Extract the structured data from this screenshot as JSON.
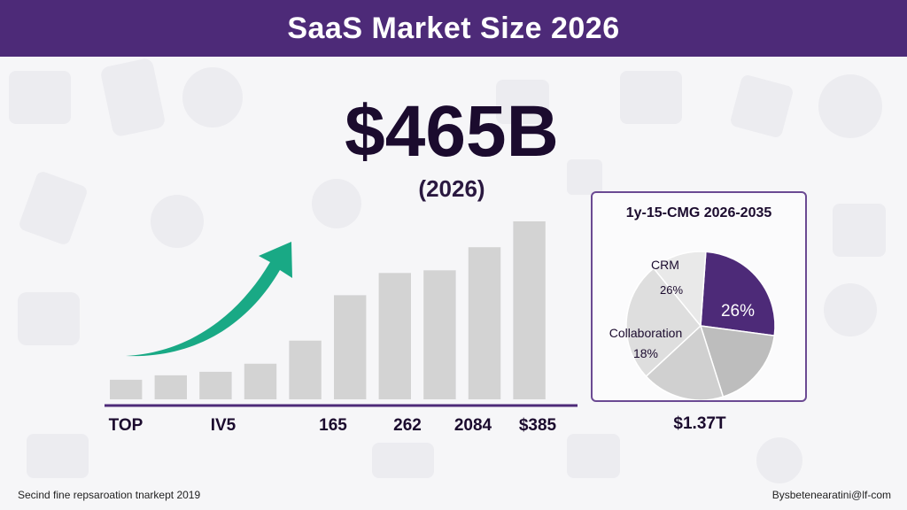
{
  "header": {
    "title": "SaaS Market Size 2026"
  },
  "headline": {
    "value": "$465B",
    "sub": "(2026)"
  },
  "colors": {
    "header": "#4d2a78",
    "bar": "#d3d3d3",
    "axis": "#4d2a78",
    "arrow": "#19a985",
    "pie_purple": "#4d2a78",
    "pie_dark_grey": "#bdbdbd",
    "pie_light_grey": "#d8d8d8",
    "pie_lightest": "#e6e6e6"
  },
  "chart_data": [
    {
      "type": "bar",
      "categories": [
        "",
        "",
        "",
        "",
        "",
        "",
        "",
        "",
        "",
        ""
      ],
      "values": [
        22,
        27,
        31,
        40,
        66,
        117,
        142,
        145,
        171,
        200
      ],
      "ylim": [
        0,
        210
      ],
      "grid": false,
      "x_labels": [
        "TOP",
        "IV5",
        "165",
        "262",
        "2084",
        "$385"
      ],
      "trend_arrow_icon": "upward-trend-arrow-icon"
    },
    {
      "type": "pie",
      "title": "1y-15-CMG 2026-2035",
      "slices": [
        {
          "label": "",
          "value": 26,
          "value_label": "26%",
          "color": "#4d2a78"
        },
        {
          "label": "",
          "value": 18,
          "value_label": "",
          "color": "#bdbdbd"
        },
        {
          "label": "Collaboration",
          "value": 18,
          "value_label": "18%",
          "color": "#d0d0d0"
        },
        {
          "label": "CRM",
          "value": 26,
          "value_label": "26%",
          "color": "#dedede"
        },
        {
          "label": "",
          "value": 12,
          "value_label": "",
          "color": "#e9e9e9"
        }
      ],
      "total_label": "$1.37T"
    }
  ],
  "footer": {
    "left": "Secind fine repsaroation tnarkept 2019",
    "right": "Bysbetenearatini@lf-com"
  }
}
